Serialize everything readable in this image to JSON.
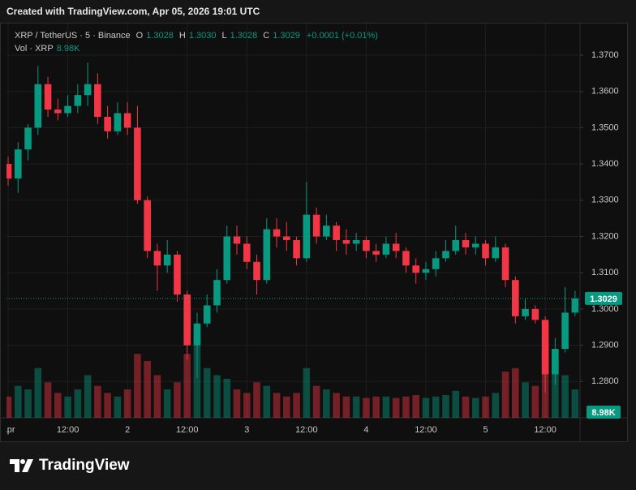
{
  "caption": "Created with TradingView.com, Apr 05, 2026 19:01 UTC",
  "brand": "TradingView",
  "chart_data": {
    "type": "candlestick",
    "title": "XRP / TetherUS · 5 · Binance",
    "ohlc": [
      {
        "key": "O",
        "value": 1.3028,
        "label": "1.3028"
      },
      {
        "key": "H",
        "value": 1.303,
        "label": "1.3030"
      },
      {
        "key": "L",
        "value": 1.3028,
        "label": "1.3028"
      },
      {
        "key": "C",
        "value": 1.3029,
        "label": "1.3029"
      }
    ],
    "change": "+0.0001 (+0.01%)",
    "volume_name": "Vol · XRP",
    "volume_last": {
      "value": 8980,
      "label": "8.98K"
    },
    "last_price": {
      "value": 1.3029,
      "label": "1.3029"
    },
    "up_color": "#089981",
    "down_color": "#f23645",
    "x": [
      0,
      2,
      4,
      6,
      8,
      10,
      12,
      14,
      16,
      18,
      20,
      22,
      24,
      26,
      28,
      30,
      32,
      34,
      36,
      38,
      40,
      42,
      44,
      46,
      48,
      50,
      52,
      54,
      56,
      58,
      60,
      62,
      64,
      66,
      68,
      70,
      72,
      74,
      76,
      78,
      80,
      82,
      84,
      86,
      88,
      90,
      92,
      94,
      96,
      98,
      100,
      102,
      104,
      106,
      108,
      110,
      112,
      114
    ],
    "open": [
      1.34,
      1.336,
      1.344,
      1.35,
      1.362,
      1.355,
      1.354,
      1.356,
      1.359,
      1.362,
      1.353,
      1.349,
      1.354,
      1.35,
      1.33,
      1.316,
      1.312,
      1.315,
      1.304,
      1.29,
      1.296,
      1.301,
      1.308,
      1.32,
      1.318,
      1.313,
      1.308,
      1.322,
      1.32,
      1.319,
      1.314,
      1.326,
      1.32,
      1.323,
      1.319,
      1.318,
      1.319,
      1.316,
      1.315,
      1.318,
      1.316,
      1.312,
      1.31,
      1.311,
      1.314,
      1.316,
      1.319,
      1.317,
      1.318,
      1.314,
      1.317,
      1.308,
      1.298,
      1.3,
      1.297,
      1.282,
      1.289,
      1.299
    ],
    "high": [
      1.342,
      1.346,
      1.351,
      1.367,
      1.364,
      1.358,
      1.359,
      1.362,
      1.368,
      1.365,
      1.356,
      1.357,
      1.357,
      1.356,
      1.331,
      1.318,
      1.319,
      1.316,
      1.305,
      1.299,
      1.304,
      1.311,
      1.323,
      1.323,
      1.32,
      1.315,
      1.325,
      1.325,
      1.324,
      1.32,
      1.335,
      1.328,
      1.326,
      1.324,
      1.322,
      1.321,
      1.32,
      1.318,
      1.32,
      1.321,
      1.317,
      1.314,
      1.313,
      1.316,
      1.319,
      1.323,
      1.321,
      1.32,
      1.319,
      1.32,
      1.318,
      1.309,
      1.303,
      1.301,
      1.298,
      1.292,
      1.306,
      1.305
    ],
    "low": [
      1.334,
      1.332,
      1.341,
      1.348,
      1.353,
      1.352,
      1.353,
      1.354,
      1.356,
      1.351,
      1.347,
      1.348,
      1.348,
      1.329,
      1.314,
      1.305,
      1.31,
      1.302,
      1.286,
      1.281,
      1.295,
      1.299,
      1.307,
      1.315,
      1.311,
      1.304,
      1.307,
      1.317,
      1.316,
      1.312,
      1.313,
      1.318,
      1.319,
      1.316,
      1.315,
      1.316,
      1.314,
      1.313,
      1.314,
      1.314,
      1.31,
      1.307,
      1.308,
      1.309,
      1.313,
      1.315,
      1.315,
      1.315,
      1.312,
      1.313,
      1.306,
      1.296,
      1.297,
      1.296,
      1.277,
      1.279,
      1.288,
      1.298
    ],
    "close": [
      1.336,
      1.344,
      1.35,
      1.362,
      1.355,
      1.354,
      1.356,
      1.359,
      1.362,
      1.353,
      1.349,
      1.354,
      1.35,
      1.33,
      1.316,
      1.312,
      1.315,
      1.304,
      1.29,
      1.296,
      1.301,
      1.308,
      1.32,
      1.318,
      1.313,
      1.308,
      1.322,
      1.32,
      1.319,
      1.314,
      1.326,
      1.32,
      1.323,
      1.319,
      1.318,
      1.319,
      1.316,
      1.315,
      1.318,
      1.316,
      1.312,
      1.31,
      1.311,
      1.314,
      1.316,
      1.319,
      1.317,
      1.318,
      1.314,
      1.317,
      1.308,
      1.298,
      1.3,
      1.297,
      1.282,
      1.289,
      1.299,
      1.3029
    ],
    "volume": [
      300000,
      450000,
      400000,
      700000,
      500000,
      350000,
      300000,
      400000,
      600000,
      450000,
      350000,
      300000,
      400000,
      900000,
      800000,
      600000,
      400000,
      500000,
      900000,
      1200000,
      700000,
      600000,
      550000,
      400000,
      350000,
      500000,
      450000,
      350000,
      300000,
      350000,
      700000,
      450000,
      400000,
      350000,
      300000,
      300000,
      280000,
      300000,
      300000,
      280000,
      300000,
      320000,
      280000,
      300000,
      320000,
      380000,
      300000,
      280000,
      300000,
      350000,
      650000,
      700000,
      500000,
      450000,
      1100000,
      800000,
      600000,
      400000
    ],
    "xlim": [
      -0.33,
      115
    ],
    "ylim": [
      1.27,
      1.3785
    ],
    "xticks": [
      {
        "value": 0,
        "label": "Apr"
      },
      {
        "value": 12,
        "label": "12:00"
      },
      {
        "value": 24,
        "label": "2"
      },
      {
        "value": 36,
        "label": "12:00"
      },
      {
        "value": 48,
        "label": "3"
      },
      {
        "value": 60,
        "label": "12:00"
      },
      {
        "value": 72,
        "label": "4"
      },
      {
        "value": 84,
        "label": "12:00"
      },
      {
        "value": 96,
        "label": "5"
      },
      {
        "value": 108,
        "label": "12:00"
      }
    ],
    "yticks": [
      {
        "value": 1.28,
        "label": "1.2800"
      },
      {
        "value": 1.29,
        "label": "1.2900"
      },
      {
        "value": 1.3,
        "label": "1.3000"
      },
      {
        "value": 1.31,
        "label": "1.3100"
      },
      {
        "value": 1.32,
        "label": "1.3200"
      },
      {
        "value": 1.33,
        "label": "1.3300"
      },
      {
        "value": 1.34,
        "label": "1.3400"
      },
      {
        "value": 1.35,
        "label": "1.3500"
      },
      {
        "value": 1.36,
        "label": "1.3600"
      },
      {
        "value": 1.37,
        "label": "1.3700"
      }
    ],
    "grid": true
  }
}
